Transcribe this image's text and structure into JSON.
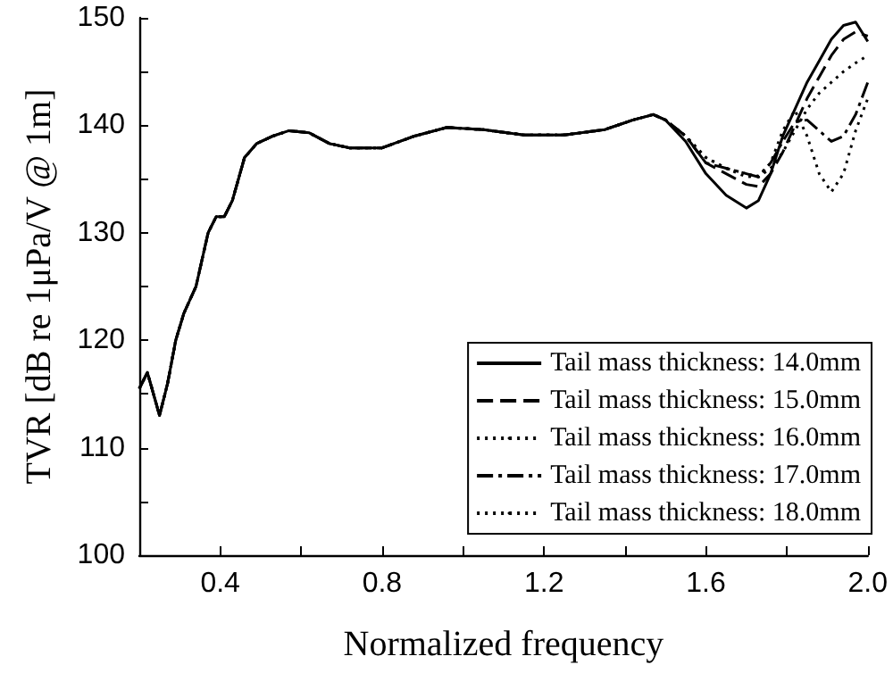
{
  "chart_data": {
    "type": "line",
    "xlabel": "Normalized frequency",
    "ylabel": "TVR [dB re 1μPa/V @ 1m]",
    "x": [
      0.2,
      0.22,
      0.25,
      0.27,
      0.29,
      0.31,
      0.34,
      0.37,
      0.39,
      0.41,
      0.43,
      0.46,
      0.49,
      0.53,
      0.57,
      0.62,
      0.67,
      0.72,
      0.8,
      0.88,
      0.96,
      1.05,
      1.15,
      1.25,
      1.35,
      1.42,
      1.47,
      1.5,
      1.55,
      1.6,
      1.65,
      1.7,
      1.73,
      1.76,
      1.79,
      1.82,
      1.85,
      1.88,
      1.91,
      1.94,
      1.97,
      2.0
    ],
    "series": [
      {
        "name": "Tail mass thickness: 14.0mm",
        "color": "#000000",
        "line_style": "solid",
        "values": [
          115.5,
          117,
          113,
          116,
          120,
          122.5,
          125,
          130,
          131.5,
          131.5,
          133,
          137,
          138.3,
          139,
          139.5,
          139.3,
          138.3,
          137.9,
          137.9,
          139,
          139.8,
          139.6,
          139.1,
          139.1,
          139.6,
          140.5,
          141,
          140.5,
          138.5,
          135.5,
          133.5,
          132.3,
          133,
          135.5,
          139,
          141.5,
          144,
          146,
          148,
          149.3,
          149.6,
          147.8
        ]
      },
      {
        "name": "Tail mass thickness: 15.0mm",
        "color": "#000000",
        "line_style": "dashed",
        "values": [
          115.5,
          117,
          113,
          116,
          120,
          122.5,
          125,
          130,
          131.5,
          131.5,
          133,
          137,
          138.3,
          139,
          139.5,
          139.3,
          138.3,
          137.9,
          137.9,
          139,
          139.8,
          139.6,
          139.1,
          139.1,
          139.6,
          140.5,
          141,
          140.5,
          139,
          136.5,
          135.5,
          134.5,
          134.3,
          135.5,
          137.5,
          140,
          142.5,
          144.5,
          146.5,
          148,
          148.7,
          148.3
        ]
      },
      {
        "name": "Tail mass thickness: 16.0mm",
        "color": "#000000",
        "line_style": "dotted",
        "values": [
          115.5,
          117,
          113,
          116,
          120,
          122.5,
          125,
          130,
          131.5,
          131.5,
          133,
          137,
          138.3,
          139,
          139.5,
          139.3,
          138.3,
          137.9,
          137.9,
          139,
          139.8,
          139.6,
          139.1,
          139.1,
          139.6,
          140.5,
          141,
          140.5,
          139,
          137,
          136,
          135.5,
          135.2,
          136,
          137.5,
          139.5,
          141.5,
          143,
          144,
          145,
          145.8,
          146.5
        ]
      },
      {
        "name": "Tail mass thickness: 17.0mm",
        "color": "#000000",
        "line_style": "dashdot",
        "values": [
          115.5,
          117,
          113,
          116,
          120,
          122.5,
          125,
          130,
          131.5,
          131.5,
          133,
          137,
          138.3,
          139,
          139.5,
          139.3,
          138.3,
          137.9,
          137.9,
          139,
          139.8,
          139.6,
          139.1,
          139.1,
          139.6,
          140.5,
          141,
          140.5,
          139,
          136.5,
          136,
          135.5,
          135.2,
          136.5,
          138.5,
          140.3,
          140.5,
          139.5,
          138.5,
          139,
          141,
          144
        ]
      },
      {
        "name": "Tail mass thickness: 18.0mm",
        "color": "#000000",
        "line_style": "dotted",
        "values": [
          115.5,
          117,
          113,
          116,
          120,
          122.5,
          125,
          130,
          131.5,
          131.5,
          133,
          137,
          138.3,
          139,
          139.5,
          139.3,
          138.3,
          137.9,
          137.9,
          139,
          139.8,
          139.6,
          139.1,
          139.1,
          139.6,
          140.5,
          141,
          140.5,
          139,
          137,
          136,
          135.2,
          135.3,
          136.5,
          139.5,
          141.4,
          139,
          135.5,
          133.8,
          135.5,
          139.5,
          142.5
        ]
      }
    ],
    "xlim": [
      0.2,
      2.0
    ],
    "xticks": [
      0.4,
      {
        "value": 0.6,
        "label": null
      },
      0.8,
      {
        "value": 1.0,
        "label": null
      },
      1.2,
      {
        "value": 1.4,
        "label": null
      },
      1.6,
      {
        "value": 1.8,
        "label": null
      },
      {
        "value": 2.0,
        "label": "2.0"
      }
    ],
    "ylim": [
      100,
      150
    ],
    "yticks": [
      100,
      {
        "value": 105,
        "label": null
      },
      110,
      {
        "value": 115,
        "label": null
      },
      120,
      {
        "value": 125,
        "label": null
      },
      130,
      {
        "value": 135,
        "label": null
      },
      140,
      {
        "value": 145,
        "label": null
      },
      150
    ],
    "legend": "bottom right",
    "grid": false,
    "marker": "none"
  }
}
